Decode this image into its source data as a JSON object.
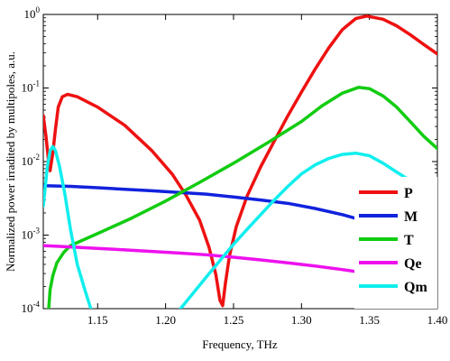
{
  "chart_data": {
    "type": "line",
    "title": "",
    "xlabel": "Frequency, THz",
    "ylabel": "Normalized power irradited by multipoles, a.u.",
    "xlim": [
      1.11,
      1.4
    ],
    "ylim": [
      0.0001,
      1
    ],
    "yscale": "log",
    "grid": false,
    "legend_position": "lower-right",
    "x_ticks": [
      {
        "value": 1.15,
        "label": "1.15"
      },
      {
        "value": 1.2,
        "label": "1.20"
      },
      {
        "value": 1.25,
        "label": "1.25"
      },
      {
        "value": 1.3,
        "label": "1.30"
      },
      {
        "value": 1.35,
        "label": "1.35"
      },
      {
        "value": 1.4,
        "label": "1.40"
      }
    ],
    "y_ticks": [
      {
        "value": 0.0001,
        "base": "10",
        "exp": "-4"
      },
      {
        "value": 0.001,
        "base": "10",
        "exp": "-3"
      },
      {
        "value": 0.01,
        "base": "10",
        "exp": "-2"
      },
      {
        "value": 0.1,
        "base": "10",
        "exp": "-1"
      },
      {
        "value": 1,
        "base": "10",
        "exp": "0"
      }
    ],
    "series": [
      {
        "name": "P",
        "color": "#ee1111",
        "points": [
          [
            1.11,
            0.042
          ],
          [
            1.112,
            0.022
          ],
          [
            1.114,
            0.0095
          ],
          [
            1.115,
            0.0075
          ],
          [
            1.117,
            0.013
          ],
          [
            1.119,
            0.028
          ],
          [
            1.121,
            0.055
          ],
          [
            1.124,
            0.076
          ],
          [
            1.128,
            0.082
          ],
          [
            1.135,
            0.076
          ],
          [
            1.15,
            0.055
          ],
          [
            1.17,
            0.031
          ],
          [
            1.19,
            0.014
          ],
          [
            1.205,
            0.0067
          ],
          [
            1.215,
            0.0035
          ],
          [
            1.225,
            0.0016
          ],
          [
            1.232,
            0.00068
          ],
          [
            1.237,
            0.00029
          ],
          [
            1.24,
            0.00013
          ],
          [
            1.242,
            0.00011
          ],
          [
            1.244,
            0.00022
          ],
          [
            1.247,
            0.00052
          ],
          [
            1.252,
            0.0013
          ],
          [
            1.26,
            0.0034
          ],
          [
            1.27,
            0.0085
          ],
          [
            1.28,
            0.019
          ],
          [
            1.29,
            0.042
          ],
          [
            1.3,
            0.088
          ],
          [
            1.31,
            0.18
          ],
          [
            1.32,
            0.35
          ],
          [
            1.33,
            0.62
          ],
          [
            1.34,
            0.88
          ],
          [
            1.348,
            0.95
          ],
          [
            1.36,
            0.86
          ],
          [
            1.37,
            0.7
          ],
          [
            1.38,
            0.53
          ],
          [
            1.39,
            0.39
          ],
          [
            1.4,
            0.29
          ]
        ]
      },
      {
        "name": "M",
        "color": "#1122dd",
        "points": [
          [
            1.11,
            0.0047
          ],
          [
            1.13,
            0.0046
          ],
          [
            1.15,
            0.0044
          ],
          [
            1.17,
            0.0042
          ],
          [
            1.19,
            0.004
          ],
          [
            1.21,
            0.0038
          ],
          [
            1.23,
            0.0036
          ],
          [
            1.25,
            0.0033
          ],
          [
            1.27,
            0.003
          ],
          [
            1.29,
            0.0027
          ],
          [
            1.31,
            0.0023
          ],
          [
            1.33,
            0.0019
          ],
          [
            1.35,
            0.0015
          ],
          [
            1.37,
            0.0012
          ],
          [
            1.39,
            0.00095
          ],
          [
            1.4,
            0.00088
          ]
        ]
      },
      {
        "name": "T",
        "color": "#11cc11",
        "points": [
          [
            1.114,
            0.0001
          ],
          [
            1.115,
            0.00018
          ],
          [
            1.117,
            0.00028
          ],
          [
            1.12,
            0.00042
          ],
          [
            1.125,
            0.00058
          ],
          [
            1.13,
            0.00072
          ],
          [
            1.15,
            0.00105
          ],
          [
            1.175,
            0.0017
          ],
          [
            1.2,
            0.0029
          ],
          [
            1.225,
            0.0052
          ],
          [
            1.25,
            0.0095
          ],
          [
            1.275,
            0.018
          ],
          [
            1.3,
            0.035
          ],
          [
            1.315,
            0.057
          ],
          [
            1.33,
            0.085
          ],
          [
            1.342,
            0.102
          ],
          [
            1.35,
            0.098
          ],
          [
            1.36,
            0.078
          ],
          [
            1.37,
            0.055
          ],
          [
            1.38,
            0.035
          ],
          [
            1.39,
            0.022
          ],
          [
            1.4,
            0.015
          ]
        ]
      },
      {
        "name": "Qe",
        "color": "#ee11ee",
        "points": [
          [
            1.11,
            0.00072
          ],
          [
            1.13,
            0.00069
          ],
          [
            1.15,
            0.00066
          ],
          [
            1.17,
            0.00063
          ],
          [
            1.19,
            0.0006
          ],
          [
            1.21,
            0.00057
          ],
          [
            1.23,
            0.00054
          ],
          [
            1.25,
            0.0005
          ],
          [
            1.27,
            0.00046
          ],
          [
            1.29,
            0.00042
          ],
          [
            1.31,
            0.00038
          ],
          [
            1.33,
            0.00034
          ],
          [
            1.35,
            0.0003
          ],
          [
            1.37,
            0.00027
          ],
          [
            1.39,
            0.00024
          ],
          [
            1.4,
            0.00023
          ]
        ]
      },
      {
        "name": "Qm",
        "color": "#11eeee",
        "points": [
          [
            1.11,
            0.0025
          ],
          [
            1.113,
            0.0085
          ],
          [
            1.115,
            0.014
          ],
          [
            1.117,
            0.016
          ],
          [
            1.119,
            0.014
          ],
          [
            1.122,
            0.0085
          ],
          [
            1.126,
            0.0035
          ],
          [
            1.13,
            0.0012
          ],
          [
            1.135,
            0.0004
          ],
          [
            1.141,
            0.00017
          ],
          [
            1.145,
            0.0001
          ]
        ],
        "points2": [
          [
            1.211,
            0.0001
          ],
          [
            1.22,
            0.00016
          ],
          [
            1.23,
            0.00027
          ],
          [
            1.24,
            0.00045
          ],
          [
            1.25,
            0.00075
          ],
          [
            1.26,
            0.0012
          ],
          [
            1.27,
            0.0019
          ],
          [
            1.28,
            0.003
          ],
          [
            1.29,
            0.0046
          ],
          [
            1.3,
            0.0068
          ],
          [
            1.31,
            0.009
          ],
          [
            1.32,
            0.011
          ],
          [
            1.33,
            0.0125
          ],
          [
            1.34,
            0.013
          ],
          [
            1.35,
            0.012
          ],
          [
            1.36,
            0.0095
          ],
          [
            1.37,
            0.0072
          ],
          [
            1.38,
            0.0055
          ],
          [
            1.39,
            0.0042
          ],
          [
            1.4,
            0.0035
          ]
        ]
      }
    ]
  }
}
